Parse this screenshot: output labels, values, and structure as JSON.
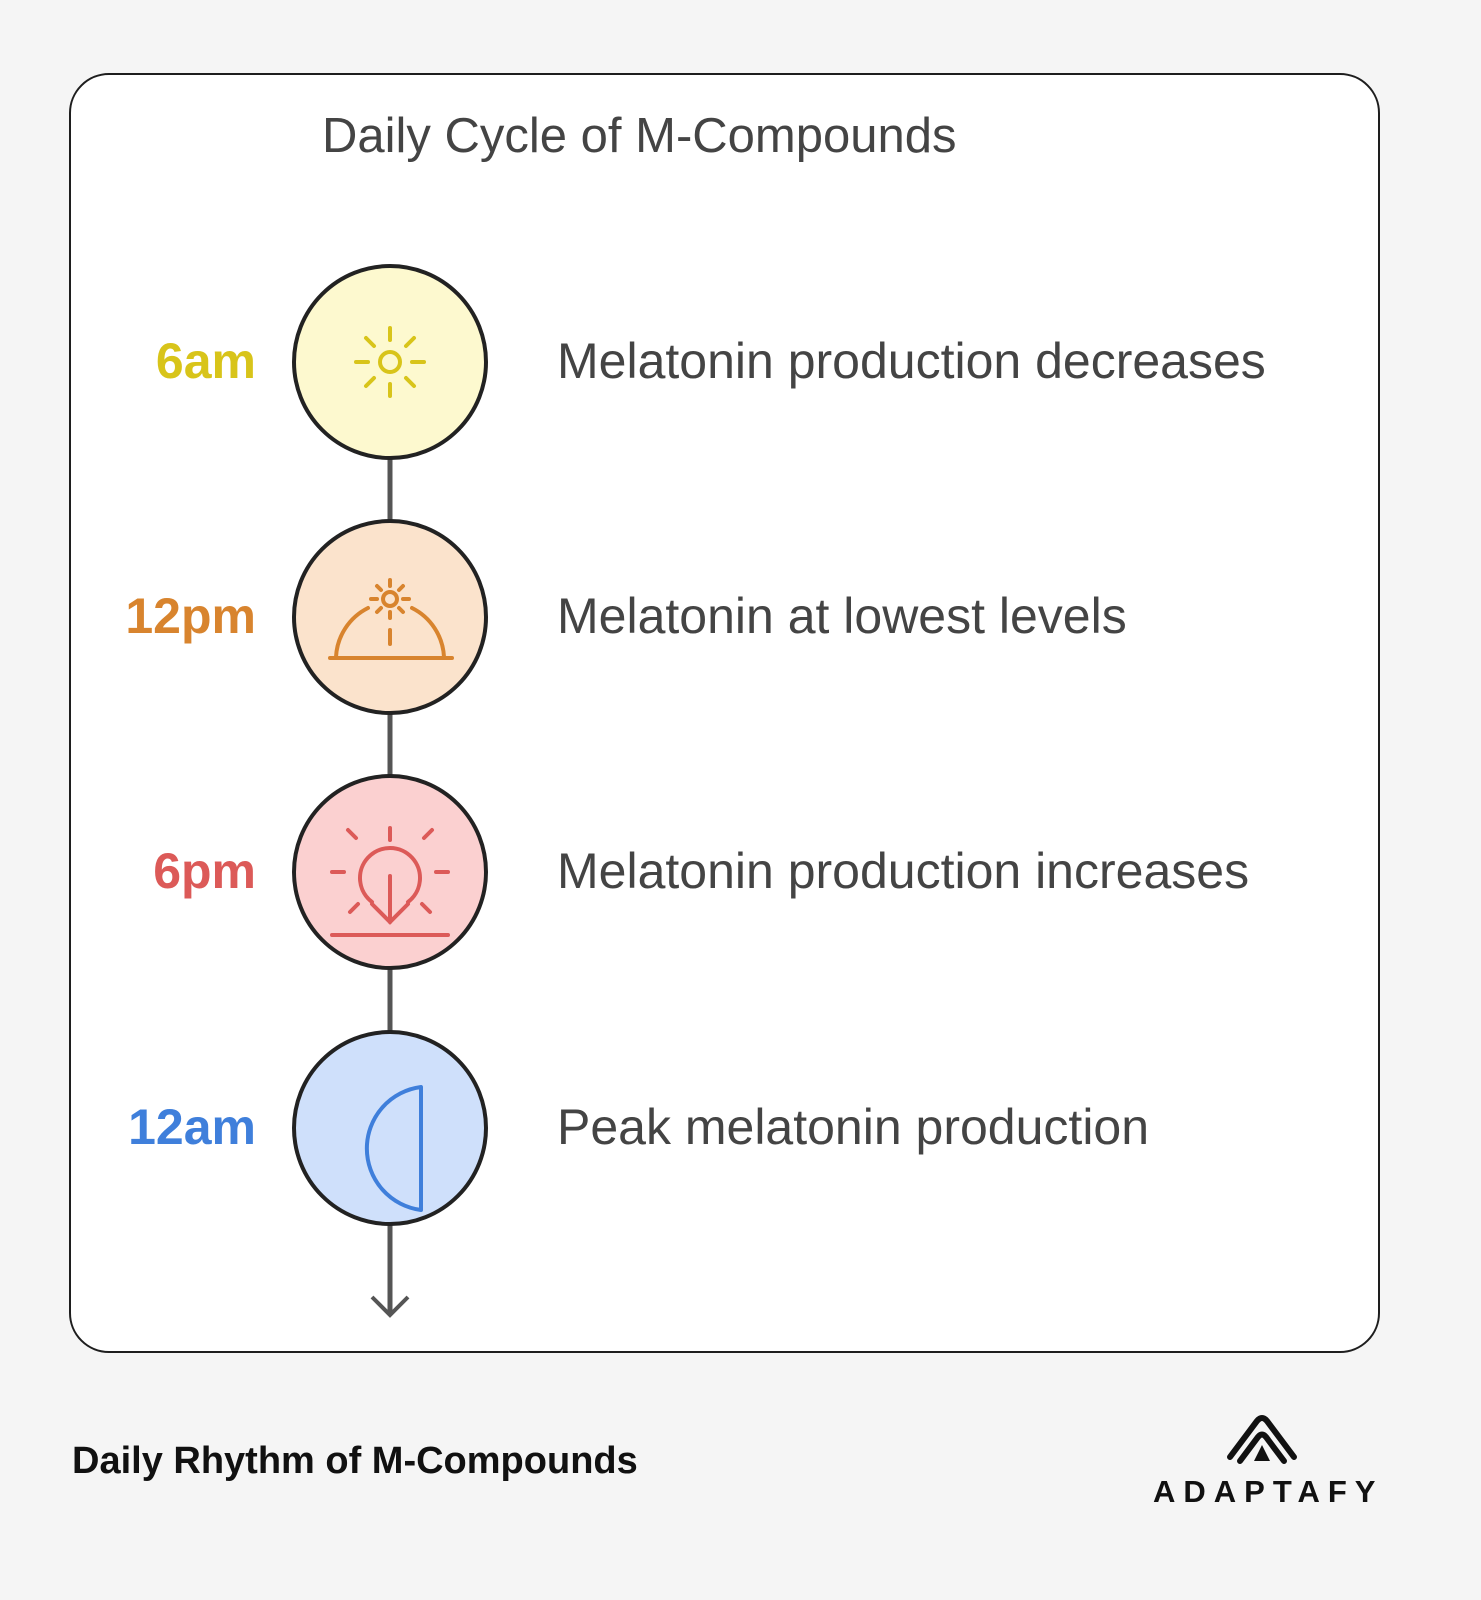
{
  "title": "Daily Cycle of M-Compounds",
  "steps": [
    {
      "time": "6am",
      "description": "Melatonin production decreases",
      "icon": "sun-icon",
      "color": "#d8c41a",
      "fill": "#fdf9cf"
    },
    {
      "time": "12pm",
      "description": "Melatonin at lowest levels",
      "icon": "sun-dome-icon",
      "color": "#d8842e",
      "fill": "#fbe3cc"
    },
    {
      "time": "6pm",
      "description": "Melatonin production increases",
      "icon": "sunset-icon",
      "color": "#dc5a58",
      "fill": "#fbd0d0"
    },
    {
      "time": "12am",
      "description": "Peak melatonin production",
      "icon": "half-moon-icon",
      "color": "#3f7fdb",
      "fill": "#cfe0fb"
    }
  ],
  "footer": {
    "caption": "Daily Rhythm of M-Compounds",
    "brand": "ADAPTAFY"
  }
}
